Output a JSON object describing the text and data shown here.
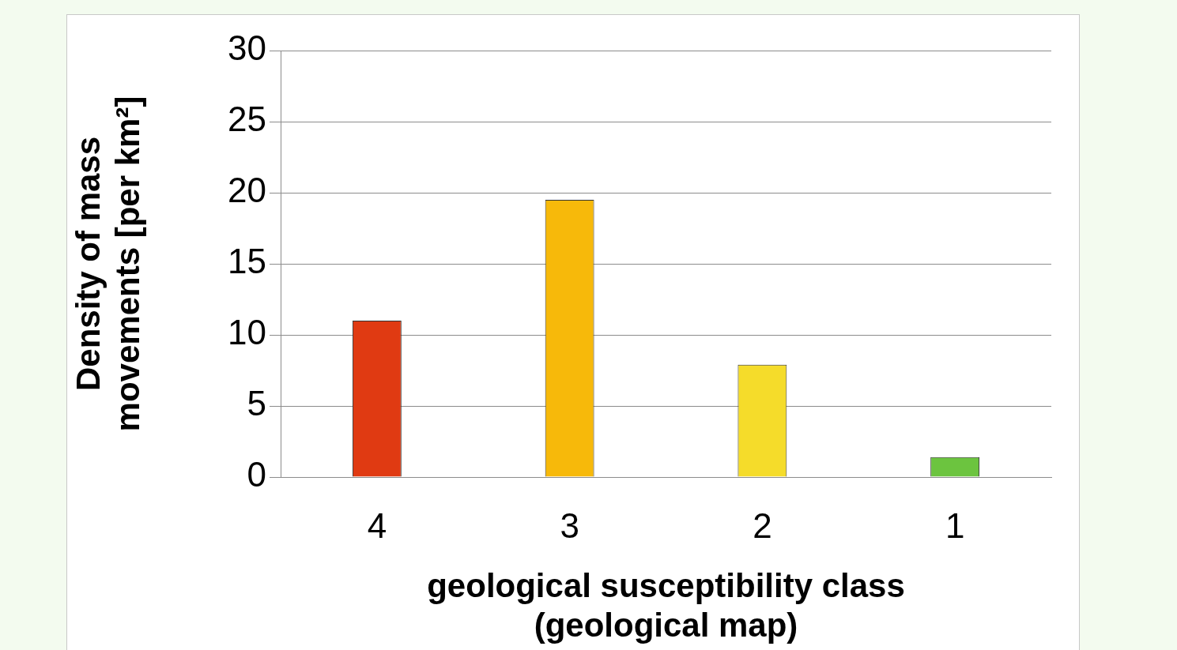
{
  "chart_data": {
    "type": "bar",
    "xlabel": "geological susceptibility class (geological map)",
    "ylabel": "Density of mass movements [per km²]",
    "categories": [
      "4",
      "3",
      "2",
      "1"
    ],
    "values": [
      11,
      19.5,
      7.9,
      1.4
    ],
    "colors": [
      "#e03a12",
      "#f7b90a",
      "#f5dc2a",
      "#6cc43f"
    ],
    "ylim": [
      0,
      30
    ],
    "yticks": [
      0,
      5,
      10,
      15,
      20,
      25,
      30
    ],
    "grid": "y",
    "legend": false
  }
}
